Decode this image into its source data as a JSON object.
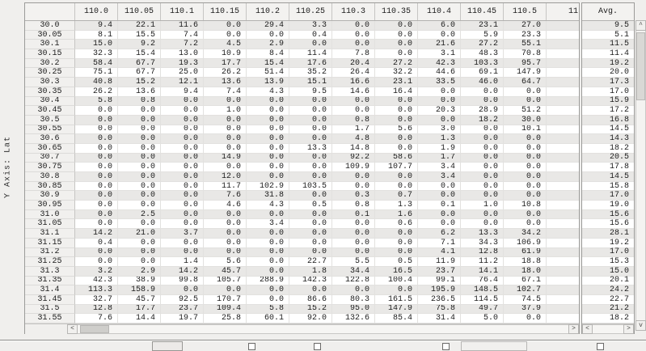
{
  "axis": {
    "y_label": "Y Axis: Lat"
  },
  "icons": {
    "left_arrow": "<",
    "right_arrow": ">",
    "up_arrow": "^",
    "down_arrow": "v"
  },
  "table": {
    "corner_label": "",
    "columns": [
      "110.0",
      "110.05",
      "110.1",
      "110.15",
      "110.2",
      "110.25",
      "110.3",
      "110.35",
      "110.4",
      "110.45",
      "110.5"
    ],
    "truncated_column_label": "11",
    "avg_column_label": "Avg.",
    "rows": [
      {
        "lat": "30.0",
        "values": [
          "9.4",
          "22.1",
          "11.6",
          "0.0",
          "29.4",
          "3.3",
          "0.0",
          "0.0",
          "6.0",
          "23.1",
          "27.0"
        ],
        "avg": "9.5"
      },
      {
        "lat": "30.05",
        "values": [
          "8.1",
          "15.5",
          "7.4",
          "0.0",
          "0.0",
          "0.4",
          "0.0",
          "0.0",
          "0.0",
          "5.9",
          "23.3"
        ],
        "avg": "5.1"
      },
      {
        "lat": "30.1",
        "values": [
          "15.0",
          "9.2",
          "7.2",
          "4.5",
          "2.9",
          "0.0",
          "0.0",
          "0.0",
          "21.6",
          "27.2",
          "55.1"
        ],
        "avg": "11.5"
      },
      {
        "lat": "30.15",
        "values": [
          "32.3",
          "15.4",
          "13.0",
          "10.9",
          "8.4",
          "11.4",
          "7.8",
          "0.0",
          "3.1",
          "48.3",
          "70.8"
        ],
        "avg": "11.4"
      },
      {
        "lat": "30.2",
        "values": [
          "58.4",
          "67.7",
          "19.3",
          "17.7",
          "15.4",
          "17.6",
          "20.4",
          "27.2",
          "42.3",
          "103.3",
          "95.7"
        ],
        "avg": "19.2"
      },
      {
        "lat": "30.25",
        "values": [
          "75.1",
          "67.7",
          "25.0",
          "26.2",
          "51.4",
          "35.2",
          "26.4",
          "32.2",
          "44.6",
          "69.1",
          "147.9"
        ],
        "avg": "20.0"
      },
      {
        "lat": "30.3",
        "values": [
          "40.8",
          "15.2",
          "12.1",
          "13.6",
          "13.9",
          "15.1",
          "16.6",
          "23.1",
          "33.5",
          "46.0",
          "64.7"
        ],
        "avg": "17.3"
      },
      {
        "lat": "30.35",
        "values": [
          "26.2",
          "13.6",
          "9.4",
          "7.4",
          "4.3",
          "9.5",
          "14.6",
          "16.4",
          "0.0",
          "0.0",
          "0.0"
        ],
        "avg": "17.0"
      },
      {
        "lat": "30.4",
        "values": [
          "5.8",
          "0.8",
          "0.0",
          "0.0",
          "0.0",
          "0.0",
          "0.0",
          "0.0",
          "0.0",
          "0.0",
          "0.0"
        ],
        "avg": "15.9"
      },
      {
        "lat": "30.45",
        "values": [
          "0.0",
          "0.0",
          "0.0",
          "1.0",
          "0.0",
          "0.0",
          "0.0",
          "0.0",
          "20.3",
          "28.9",
          "51.2"
        ],
        "avg": "17.2"
      },
      {
        "lat": "30.5",
        "values": [
          "0.0",
          "0.0",
          "0.0",
          "0.0",
          "0.0",
          "0.0",
          "0.8",
          "0.0",
          "0.0",
          "18.2",
          "30.0"
        ],
        "avg": "16.8"
      },
      {
        "lat": "30.55",
        "values": [
          "0.0",
          "0.0",
          "0.0",
          "0.0",
          "0.0",
          "0.0",
          "1.7",
          "5.6",
          "3.0",
          "0.0",
          "10.1"
        ],
        "avg": "14.5"
      },
      {
        "lat": "30.6",
        "values": [
          "0.0",
          "0.0",
          "0.0",
          "0.0",
          "0.0",
          "0.0",
          "4.8",
          "0.0",
          "1.3",
          "0.0",
          "0.0"
        ],
        "avg": "14.3"
      },
      {
        "lat": "30.65",
        "values": [
          "0.0",
          "0.0",
          "0.0",
          "0.0",
          "0.0",
          "13.3",
          "14.8",
          "0.0",
          "1.9",
          "0.0",
          "0.0"
        ],
        "avg": "18.2"
      },
      {
        "lat": "30.7",
        "values": [
          "0.0",
          "0.0",
          "0.0",
          "14.9",
          "0.0",
          "0.0",
          "92.2",
          "58.6",
          "1.7",
          "0.0",
          "0.0"
        ],
        "avg": "20.5"
      },
      {
        "lat": "30.75",
        "values": [
          "0.0",
          "0.0",
          "0.0",
          "0.0",
          "0.0",
          "0.0",
          "109.9",
          "107.7",
          "3.4",
          "0.0",
          "0.0"
        ],
        "avg": "17.8"
      },
      {
        "lat": "30.8",
        "values": [
          "0.0",
          "0.0",
          "0.0",
          "12.0",
          "0.0",
          "0.0",
          "0.0",
          "0.0",
          "3.4",
          "0.0",
          "0.0"
        ],
        "avg": "14.5"
      },
      {
        "lat": "30.85",
        "values": [
          "0.0",
          "0.0",
          "0.0",
          "11.7",
          "102.9",
          "103.5",
          "0.0",
          "0.0",
          "0.0",
          "0.0",
          "0.0"
        ],
        "avg": "15.8"
      },
      {
        "lat": "30.9",
        "values": [
          "0.0",
          "0.0",
          "0.0",
          "7.6",
          "31.8",
          "0.0",
          "0.3",
          "0.7",
          "0.0",
          "0.0",
          "0.0"
        ],
        "avg": "17.0"
      },
      {
        "lat": "30.95",
        "values": [
          "0.0",
          "0.0",
          "0.0",
          "4.6",
          "4.3",
          "0.5",
          "0.8",
          "1.3",
          "0.1",
          "1.0",
          "10.8"
        ],
        "avg": "19.0"
      },
      {
        "lat": "31.0",
        "values": [
          "0.0",
          "2.5",
          "0.0",
          "0.0",
          "0.0",
          "0.0",
          "0.1",
          "1.6",
          "0.0",
          "0.0",
          "0.0"
        ],
        "avg": "15.6"
      },
      {
        "lat": "31.05",
        "values": [
          "0.0",
          "0.0",
          "0.0",
          "0.0",
          "3.4",
          "0.0",
          "0.0",
          "0.6",
          "0.0",
          "0.0",
          "0.0"
        ],
        "avg": "15.6"
      },
      {
        "lat": "31.1",
        "values": [
          "14.2",
          "21.0",
          "3.7",
          "0.0",
          "0.0",
          "0.0",
          "0.0",
          "0.0",
          "6.2",
          "13.3",
          "34.2"
        ],
        "avg": "28.1"
      },
      {
        "lat": "31.15",
        "values": [
          "0.4",
          "0.0",
          "0.0",
          "0.0",
          "0.0",
          "0.0",
          "0.0",
          "0.0",
          "7.1",
          "34.3",
          "106.9"
        ],
        "avg": "19.2"
      },
      {
        "lat": "31.2",
        "values": [
          "0.0",
          "0.0",
          "0.0",
          "0.0",
          "0.0",
          "0.0",
          "0.0",
          "0.0",
          "4.1",
          "12.8",
          "61.9"
        ],
        "avg": "17.0"
      },
      {
        "lat": "31.25",
        "values": [
          "0.0",
          "0.0",
          "1.4",
          "5.6",
          "0.0",
          "22.7",
          "5.5",
          "0.5",
          "11.9",
          "11.2",
          "18.8"
        ],
        "avg": "15.3"
      },
      {
        "lat": "31.3",
        "values": [
          "3.2",
          "2.9",
          "14.2",
          "45.7",
          "0.0",
          "1.8",
          "34.4",
          "16.5",
          "23.7",
          "14.1",
          "18.0"
        ],
        "avg": "15.0"
      },
      {
        "lat": "31.35",
        "values": [
          "42.3",
          "38.9",
          "99.8",
          "105.7",
          "288.9",
          "142.3",
          "122.8",
          "100.4",
          "99.1",
          "76.4",
          "67.1"
        ],
        "avg": "20.1"
      },
      {
        "lat": "31.4",
        "values": [
          "113.3",
          "158.9",
          "0.0",
          "0.0",
          "0.0",
          "0.0",
          "0.0",
          "0.0",
          "195.9",
          "148.5",
          "102.7"
        ],
        "avg": "24.2"
      },
      {
        "lat": "31.45",
        "values": [
          "32.7",
          "45.7",
          "92.5",
          "170.7",
          "0.0",
          "86.6",
          "80.3",
          "161.5",
          "236.5",
          "114.5",
          "74.5"
        ],
        "avg": "22.7"
      },
      {
        "lat": "31.5",
        "values": [
          "12.8",
          "17.7",
          "23.7",
          "109.4",
          "5.8",
          "15.2",
          "95.0",
          "147.9",
          "75.8",
          "49.7",
          "37.9"
        ],
        "avg": "21.2"
      },
      {
        "lat": "31.55",
        "values": [
          "7.6",
          "14.4",
          "19.7",
          "25.8",
          "60.1",
          "92.0",
          "132.6",
          "85.4",
          "31.4",
          "5.0",
          "0.0"
        ],
        "avg": "18.2"
      }
    ]
  }
}
